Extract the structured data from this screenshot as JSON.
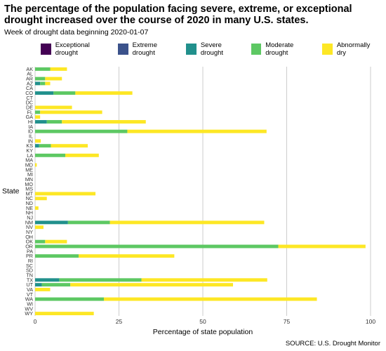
{
  "chart_data": {
    "type": "bar",
    "stacked": true,
    "orientation": "horizontal",
    "title": "The percentage of the population facing severe, extreme, or exceptional drought increased over the course of 2020 in many U.S. states.",
    "subtitle": "Week of drought data beginning 2020-01-07",
    "xlabel": "Percentage of state population",
    "ylabel": "State",
    "xlim": [
      0,
      100
    ],
    "x_ticks": [
      "0",
      "25",
      "50",
      "75",
      "100"
    ],
    "grid": "vertical",
    "legend_position": "top",
    "source": "SOURCE: U.S. Drought Monitor",
    "categories": [
      "AK",
      "AL",
      "AR",
      "AZ",
      "CA",
      "CO",
      "CT",
      "DC",
      "DE",
      "FL",
      "GA",
      "HI",
      "IA",
      "ID",
      "IL",
      "IN",
      "KS",
      "KY",
      "LA",
      "MA",
      "MD",
      "ME",
      "MI",
      "MN",
      "MO",
      "MS",
      "MT",
      "NC",
      "ND",
      "NE",
      "NH",
      "NJ",
      "NM",
      "NV",
      "NY",
      "OH",
      "OK",
      "OR",
      "PA",
      "PR",
      "RI",
      "SC",
      "SD",
      "TN",
      "TX",
      "UT",
      "VA",
      "VT",
      "WA",
      "WI",
      "WV",
      "WY"
    ],
    "series": [
      {
        "name": "Exceptional drought",
        "color": "#440154",
        "values": [
          0,
          0,
          0,
          0,
          0,
          0,
          0,
          0,
          0,
          0,
          0,
          0,
          0,
          0,
          0,
          0,
          0,
          0,
          0,
          0,
          0,
          0,
          0,
          0,
          0,
          0,
          0,
          0,
          0,
          0,
          0,
          0,
          0,
          0,
          0,
          0,
          0,
          0,
          0,
          0,
          0,
          0,
          0,
          0,
          0,
          0,
          0,
          0,
          0,
          0,
          0,
          0
        ]
      },
      {
        "name": "Extreme drought",
        "color": "#3b528b",
        "values": [
          0,
          0,
          0,
          0,
          0,
          0,
          0,
          0,
          0,
          0,
          0,
          0,
          0,
          0,
          0,
          0,
          0,
          0,
          0,
          0,
          0,
          0,
          0,
          0,
          0,
          0,
          0,
          0,
          0,
          0,
          0,
          0,
          0,
          0,
          0,
          0,
          0,
          0,
          0,
          0,
          0,
          0,
          0,
          0,
          0,
          0,
          0,
          0,
          0,
          0,
          0,
          0
        ]
      },
      {
        "name": "Severe drought",
        "color": "#21908c",
        "values": [
          0,
          0,
          0,
          1.5,
          0,
          5.5,
          0,
          0,
          0,
          0,
          0,
          3.5,
          0,
          0,
          0,
          0,
          1.2,
          0,
          0,
          0,
          0,
          0,
          0,
          0,
          0,
          0,
          0,
          0,
          0,
          0,
          0,
          0,
          9.8,
          0,
          0,
          0,
          0,
          0,
          0,
          0,
          0,
          0,
          0,
          0,
          7.2,
          2,
          0,
          0,
          0,
          0,
          0,
          0
        ]
      },
      {
        "name": "Moderate drought",
        "color": "#5dc863",
        "values": [
          4.5,
          0,
          3,
          1.5,
          0,
          6.5,
          0,
          0,
          0,
          1.5,
          0,
          4.5,
          0,
          27.5,
          0,
          0,
          3.5,
          0,
          9,
          0,
          0,
          0,
          0,
          0,
          0,
          0,
          0,
          0,
          0,
          0,
          0,
          0,
          12.5,
          0,
          0,
          0,
          3,
          72.5,
          0,
          13,
          0,
          0,
          0,
          0,
          24.5,
          8.5,
          0,
          0,
          20.5,
          0,
          0,
          0
        ]
      },
      {
        "name": "Abnormally dry",
        "color": "#fde725",
        "values": [
          5,
          0,
          5,
          1.5,
          0,
          17,
          0,
          0,
          11,
          18.5,
          1.5,
          25,
          0,
          41.5,
          0,
          1.7,
          11,
          0,
          10,
          0,
          0.5,
          0,
          0,
          0,
          0,
          0,
          18,
          3.5,
          0,
          1,
          0,
          0,
          46,
          2.5,
          0,
          0,
          6.5,
          26,
          0,
          28.5,
          0,
          0,
          0,
          0,
          37.5,
          48.5,
          4.5,
          0,
          63.5,
          0,
          0,
          17.5
        ]
      }
    ]
  }
}
